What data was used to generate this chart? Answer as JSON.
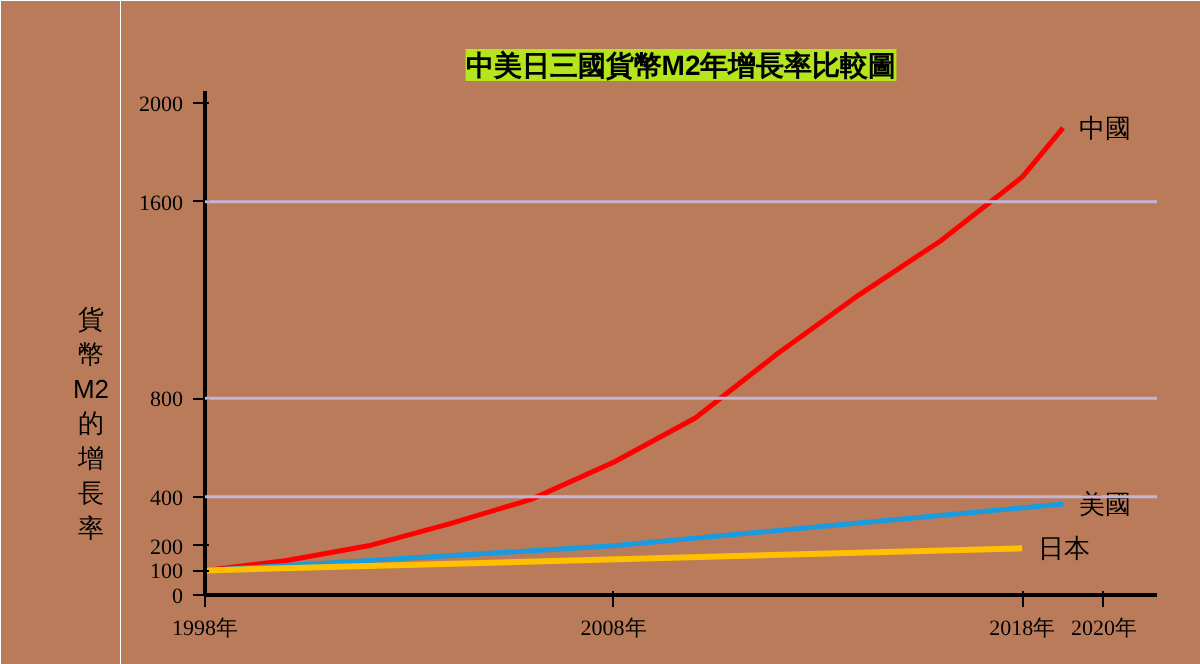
{
  "chart_data": {
    "type": "line",
    "title": "中美日三國貨幣M2年增長率比較圖",
    "ylabel": "貨幣M2的增長率",
    "xlim": [
      1998,
      2021.3
    ],
    "ylim": [
      0,
      2050
    ],
    "xticks": [
      {
        "value": 1998,
        "label": "1998年"
      },
      {
        "value": 2008,
        "label": "2008年"
      },
      {
        "value": 2018,
        "label": "2018年"
      },
      {
        "value": 2020,
        "label": "2020年"
      }
    ],
    "yticks": [
      0,
      100,
      200,
      400,
      800,
      1600,
      2000
    ],
    "series": [
      {
        "name": "中國",
        "color": "#ff0000",
        "x": [
          1998,
          2000,
          2002,
          2004,
          2006,
          2008,
          2010,
          2012,
          2014,
          2016,
          2018,
          2019
        ],
        "values": [
          100,
          140,
          200,
          290,
          390,
          540,
          720,
          980,
          1220,
          1440,
          1700,
          1900
        ]
      },
      {
        "name": "美國",
        "color": "#1a9be0",
        "x": [
          1998,
          2008,
          2019
        ],
        "values": [
          100,
          200,
          370
        ]
      },
      {
        "name": "日本",
        "color": "#ffc000",
        "x": [
          1998,
          2018
        ],
        "values": [
          100,
          190
        ]
      }
    ],
    "ref_lines": [
      {
        "axis": "y",
        "value": 400,
        "label": null,
        "color": "#c4b4d4"
      },
      {
        "axis": "y",
        "value": 800,
        "label": null,
        "color": "#c4b4d4"
      },
      {
        "axis": "y",
        "value": 1600,
        "label": null,
        "color": "#c4b4d4"
      }
    ],
    "grid": false,
    "marker": "none",
    "line_style": "solid"
  }
}
